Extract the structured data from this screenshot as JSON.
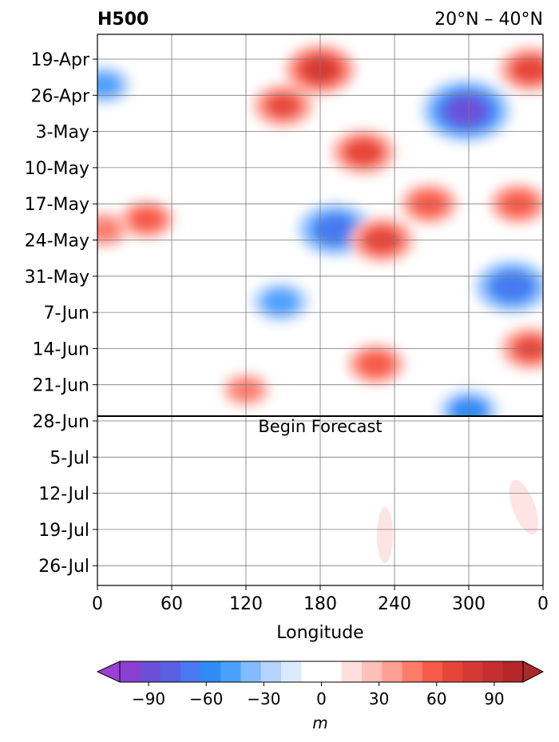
{
  "chart_data": {
    "type": "heatmap",
    "title_left": "H500",
    "title_right": "20°N – 40°N",
    "xlabel": "Longitude",
    "x_ticks": [
      "0",
      "60",
      "120",
      "180",
      "240",
      "300",
      "0"
    ],
    "y_ticks": [
      "19-Apr",
      "26-Apr",
      "3-May",
      "10-May",
      "17-May",
      "24-May",
      "31-May",
      "7-Jun",
      "14-Jun",
      "21-Jun",
      "28-Jun",
      "5-Jul",
      "12-Jul",
      "19-Jul",
      "26-Jul"
    ],
    "forecast_label": "Begin Forecast",
    "forecast_start": "28-Jun",
    "colorbar": {
      "label": "m",
      "ticks": [
        "−90",
        "−60",
        "−30",
        "0",
        "30",
        "60",
        "90"
      ],
      "min": -105,
      "max": 105,
      "step": 10,
      "colors": [
        "#8a3fd1",
        "#6a4fd8",
        "#5a5ee0",
        "#4a78ee",
        "#2f8cf5",
        "#4aa0ff",
        "#82bbff",
        "#b4d4ff",
        "#dceaff",
        "#ffffff",
        "#ffffff",
        "#ffdede",
        "#ffc0b8",
        "#ff9f91",
        "#ff7b6a",
        "#f65a48",
        "#e6463a",
        "#d43a34",
        "#c42f2f",
        "#b3262a"
      ],
      "under_color": "#9b3fd6",
      "over_color": "#a82a2a"
    },
    "anomaly_features": [
      {
        "lon": 180,
        "date": "21-Apr",
        "value": 70
      },
      {
        "lon": 150,
        "date": "28-Apr",
        "value": 55
      },
      {
        "lon": 215,
        "date": "7-May",
        "value": 60
      },
      {
        "lon": 298,
        "date": "29-Apr",
        "value": -95
      },
      {
        "lon": 350,
        "date": "21-Apr",
        "value": 60
      },
      {
        "lon": 5,
        "date": "24-Apr",
        "value": -50
      },
      {
        "lon": 192,
        "date": "22-May",
        "value": -75
      },
      {
        "lon": 230,
        "date": "24-May",
        "value": 60
      },
      {
        "lon": 268,
        "date": "17-May",
        "value": 50
      },
      {
        "lon": 340,
        "date": "17-May",
        "value": 50
      },
      {
        "lon": 335,
        "date": "2-Jun",
        "value": -75
      },
      {
        "lon": 148,
        "date": "5-Jun",
        "value": -55
      },
      {
        "lon": 225,
        "date": "17-Jun",
        "value": 50
      },
      {
        "lon": 300,
        "date": "26-Jun",
        "value": -60
      },
      {
        "lon": 350,
        "date": "14-Jun",
        "value": 55
      },
      {
        "lon": 40,
        "date": "20-May",
        "value": 45
      },
      {
        "lon": 5,
        "date": "22-May",
        "value": 40
      },
      {
        "lon": 120,
        "date": "22-Jun",
        "value": 35
      }
    ]
  }
}
